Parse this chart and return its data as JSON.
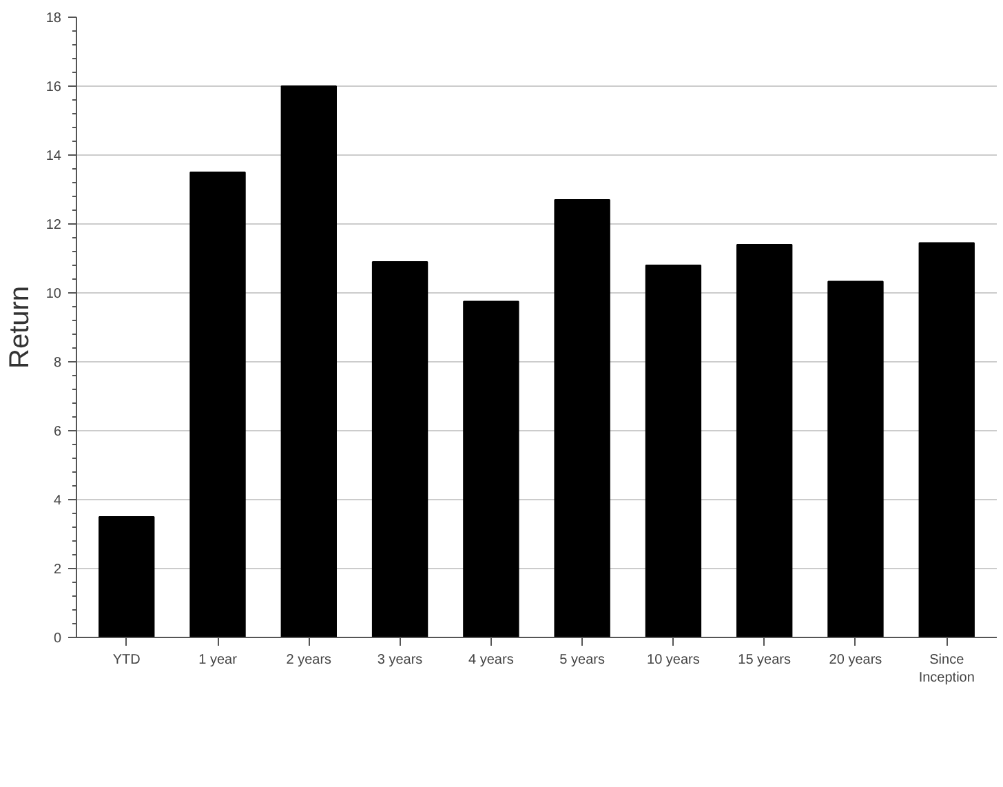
{
  "chart_data": {
    "type": "bar",
    "ylabel": "Return",
    "categories": [
      "YTD",
      "1 year",
      "2 years",
      "3 years",
      "4 years",
      "5 years",
      "10 years",
      "15 years",
      "20 years",
      "Since Inception"
    ],
    "values": [
      3.5,
      13.5,
      16.0,
      10.9,
      9.75,
      12.7,
      10.8,
      11.4,
      10.33,
      11.45
    ],
    "color": "#000000",
    "ylim": [
      0,
      18
    ],
    "yticks": [
      0,
      2,
      4,
      6,
      8,
      10,
      12,
      14,
      16,
      18
    ],
    "grid": "y"
  }
}
